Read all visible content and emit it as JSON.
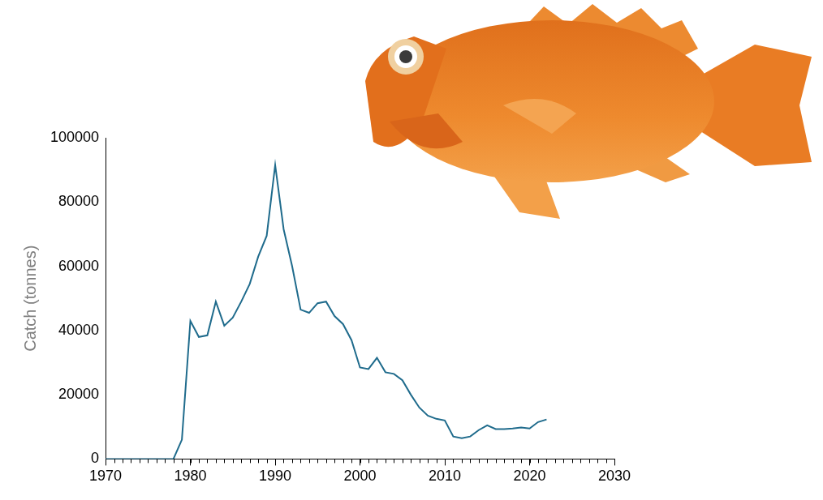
{
  "chart_data": {
    "type": "line",
    "y_label": "Catch (tonnes)",
    "color": "#1f6b8c",
    "x": [
      1970,
      1971,
      1972,
      1973,
      1974,
      1975,
      1976,
      1977,
      1978,
      1979,
      1980,
      1981,
      1982,
      1983,
      1984,
      1985,
      1986,
      1987,
      1988,
      1989,
      1990,
      1991,
      1992,
      1993,
      1994,
      1995,
      1996,
      1997,
      1998,
      1999,
      2000,
      2001,
      2002,
      2003,
      2004,
      2005,
      2006,
      2007,
      2008,
      2009,
      2010,
      2011,
      2012,
      2013,
      2014,
      2015,
      2016,
      2017,
      2018,
      2019,
      2020,
      2021,
      2022
    ],
    "values": [
      0,
      0,
      0,
      0,
      0,
      0,
      0,
      0,
      0,
      6000,
      43000,
      38000,
      38500,
      49000,
      41500,
      44000,
      49000,
      54500,
      63000,
      69500,
      91500,
      71500,
      60000,
      46500,
      45500,
      48500,
      49000,
      44500,
      42000,
      37000,
      28500,
      28000,
      31500,
      27000,
      26500,
      24500,
      20000,
      16000,
      13500,
      12500,
      12000,
      7000,
      6500,
      7000,
      9000,
      10500,
      9300,
      9300,
      9500,
      9800,
      9500,
      11500,
      12300
    ],
    "xlim": [
      1970,
      2030
    ],
    "xticks": [
      1970,
      1980,
      1990,
      2000,
      2010,
      2020,
      2030
    ],
    "ylim": [
      0,
      100000
    ],
    "yticks": [
      0,
      20000,
      40000,
      60000,
      80000,
      100000
    ],
    "grid": false
  }
}
